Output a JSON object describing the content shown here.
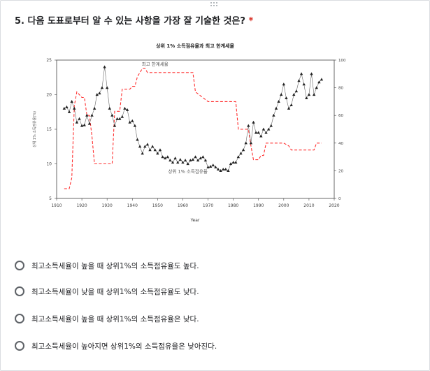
{
  "question": {
    "text": "5. 다음 도표로부터 알 수 있는 사항을 가장 잘 기술한 것은?",
    "required_mark": "*"
  },
  "chart_data": {
    "type": "line",
    "title": "상위 1% 소득점유율과 최고 한계세율",
    "xlabel": "Year",
    "ylabel_left": "상위 1% 소득점유율(%)",
    "ylabel_right": "최고 한계세율(%)",
    "x_ticks": [
      1910,
      1920,
      1930,
      1940,
      1950,
      1960,
      1970,
      1980,
      1990,
      2000,
      2010,
      2020
    ],
    "y_left_ticks": [
      5,
      10,
      15,
      20,
      25
    ],
    "y_right_ticks": [
      0,
      20,
      40,
      60,
      80,
      100
    ],
    "xlim": [
      1910,
      2020
    ],
    "ylim_left": [
      5,
      25
    ],
    "ylim_right": [
      0,
      100
    ],
    "annotations": [
      "최고 한계세율",
      "상위 1% 소득점유율"
    ],
    "series": [
      {
        "name": "상위 1% 소득점유율",
        "axis": "left",
        "color": "#222222",
        "marker": "triangle",
        "x": [
          1913,
          1914,
          1915,
          1916,
          1917,
          1918,
          1919,
          1920,
          1921,
          1922,
          1923,
          1924,
          1925,
          1926,
          1927,
          1928,
          1929,
          1930,
          1931,
          1932,
          1933,
          1934,
          1935,
          1936,
          1937,
          1938,
          1939,
          1940,
          1941,
          1942,
          1943,
          1944,
          1945,
          1946,
          1947,
          1948,
          1949,
          1950,
          1951,
          1952,
          1953,
          1954,
          1955,
          1956,
          1957,
          1958,
          1959,
          1960,
          1961,
          1962,
          1963,
          1964,
          1965,
          1966,
          1967,
          1968,
          1969,
          1970,
          1971,
          1972,
          1973,
          1974,
          1975,
          1976,
          1977,
          1978,
          1979,
          1980,
          1981,
          1982,
          1983,
          1984,
          1985,
          1986,
          1987,
          1988,
          1989,
          1990,
          1991,
          1992,
          1993,
          1994,
          1995,
          1996,
          1997,
          1998,
          1999,
          2000,
          2001,
          2002,
          2003,
          2004,
          2005,
          2006,
          2007,
          2008,
          2009,
          2010,
          2011,
          2012,
          2013,
          2014,
          2015
        ],
        "y": [
          18,
          18.2,
          17.5,
          19,
          18,
          16,
          16.5,
          15.5,
          15.6,
          17,
          15.8,
          17,
          18,
          20,
          20.2,
          21,
          24,
          21,
          18,
          17,
          15.5,
          16.5,
          16.5,
          16.8,
          18,
          17.8,
          16,
          16.2,
          15.5,
          13.5,
          12.5,
          11.5,
          12.5,
          12.8,
          12,
          12.5,
          12,
          11.5,
          12,
          11,
          10.8,
          11,
          10.5,
          10.2,
          10.8,
          10.2,
          10.6,
          10.2,
          10.5,
          10,
          10.5,
          10.6,
          11,
          10.5,
          10.8,
          11,
          10.5,
          9.5,
          9.6,
          9.8,
          9.5,
          9.2,
          9,
          9.2,
          9.2,
          9,
          10,
          10.2,
          10.2,
          11,
          11.5,
          12,
          13,
          15.5,
          13,
          16,
          14.5,
          14.5,
          14,
          15,
          14.5,
          15,
          15.5,
          17,
          18,
          19,
          20,
          21.5,
          19.5,
          18,
          18.5,
          20,
          20.5,
          22,
          23,
          21.5,
          19.5,
          20,
          23,
          20,
          21,
          21.8,
          22.2
        ]
      },
      {
        "name": "최고 한계세율",
        "axis": "right",
        "color": "#ff3030",
        "dashed": true,
        "x": [
          1913,
          1915,
          1916,
          1917,
          1918,
          1920,
          1921,
          1922,
          1923,
          1924,
          1925,
          1932,
          1933,
          1934,
          1935,
          1936,
          1939,
          1940,
          1941,
          1942,
          1944,
          1945,
          1946,
          1950,
          1951,
          1955,
          1964,
          1965,
          1970,
          1975,
          1980,
          1981,
          1982,
          1985,
          1986,
          1987,
          1988,
          1990,
          1991,
          1992,
          1993,
          2000,
          2001,
          2002,
          2003,
          2010,
          2012,
          2013,
          2015
        ],
        "y": [
          7,
          7,
          15,
          67,
          77,
          73,
          73,
          60,
          60,
          45,
          25,
          25,
          63,
          63,
          63,
          79,
          79,
          81,
          81,
          88,
          94,
          94,
          91,
          91,
          91,
          91,
          91,
          77,
          70,
          70,
          70,
          70,
          50,
          50,
          50,
          38,
          28,
          28,
          31,
          31,
          40,
          40,
          39,
          38,
          35,
          35,
          35,
          40,
          40
        ]
      }
    ]
  },
  "options": [
    "최고소득세율이 높을 때 상위1%의 소득점유율도 높다.",
    "최고소득세율이 낮을 때 상위1%의 소득점유율도 낮다.",
    "최고소득세율이 높을 때 상위1%의 소득점유율은 낮다.",
    "최고소득세율이 높아지면 상위1%의 소득점유율은 낮아진다."
  ]
}
